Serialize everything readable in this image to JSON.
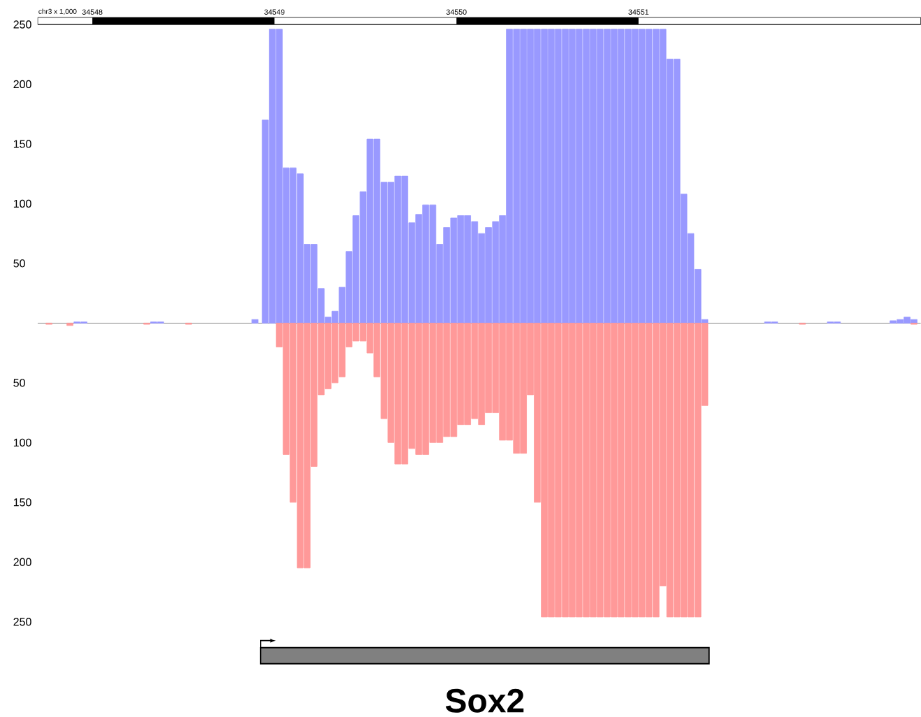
{
  "chart_data": {
    "type": "bar",
    "xlabel": "chr3 x 1,000",
    "xlim": [
      34547.7,
      34552.55
    ],
    "xticks": [
      34548,
      34549,
      34550,
      34551
    ],
    "ylim": [
      -250,
      250
    ],
    "yticks": [
      {
        "value": -250,
        "label": "250"
      },
      {
        "value": -200,
        "label": "200"
      },
      {
        "value": -150,
        "label": "150"
      },
      {
        "value": -100,
        "label": "100"
      },
      {
        "value": -50,
        "label": "50"
      },
      50,
      100,
      150,
      200,
      250
    ],
    "series": [
      {
        "color": "#9999ff",
        "x": [
          34547.916,
          34547.954,
          34548.337,
          34548.375,
          34548.893,
          34548.95,
          34548.989,
          34549.027,
          34549.065,
          34549.103,
          34549.142,
          34549.18,
          34549.218,
          34549.257,
          34549.295,
          34549.333,
          34549.372,
          34549.41,
          34549.448,
          34549.487,
          34549.525,
          34549.563,
          34549.602,
          34549.64,
          34549.678,
          34549.716,
          34549.755,
          34549.793,
          34549.831,
          34549.87,
          34549.908,
          34549.946,
          34549.985,
          34550.023,
          34550.061,
          34550.1,
          34550.138,
          34550.176,
          34550.215,
          34550.253,
          34550.291,
          34550.33,
          34550.368,
          34550.406,
          34550.444,
          34550.483,
          34550.521,
          34550.559,
          34550.598,
          34550.636,
          34550.674,
          34550.713,
          34550.751,
          34550.789,
          34550.828,
          34550.866,
          34550.904,
          34550.943,
          34550.981,
          34551.019,
          34551.057,
          34551.096,
          34551.134,
          34551.172,
          34551.211,
          34551.249,
          34551.287,
          34551.326,
          34551.364,
          34551.709,
          34551.747,
          34552.054,
          34552.092,
          34552.398,
          34552.437,
          34552.475,
          34552.513
        ],
        "values": [
          1,
          1,
          1,
          1,
          3,
          170,
          246,
          246,
          130,
          130,
          125,
          66,
          66,
          29,
          5,
          10,
          30,
          60,
          90,
          110,
          154,
          154,
          118,
          118,
          123,
          123,
          84,
          91,
          99,
          99,
          66,
          80,
          88,
          90,
          90,
          85,
          75,
          80,
          85,
          90,
          246,
          246,
          246,
          246,
          246,
          246,
          246,
          246,
          246,
          246,
          246,
          246,
          246,
          246,
          246,
          246,
          246,
          246,
          246,
          246,
          246,
          246,
          246,
          221,
          221,
          108,
          75,
          45,
          3,
          1,
          1,
          1,
          1,
          2,
          3,
          5,
          3
        ]
      },
      {
        "color": "#ff9999",
        "x": [
          34547.762,
          34547.877,
          34548.299,
          34548.529,
          34549.027,
          34549.065,
          34549.103,
          34549.142,
          34549.18,
          34549.218,
          34549.257,
          34549.295,
          34549.333,
          34549.372,
          34549.41,
          34549.448,
          34549.487,
          34549.525,
          34549.563,
          34549.602,
          34549.64,
          34549.678,
          34549.716,
          34549.755,
          34549.793,
          34549.831,
          34549.87,
          34549.908,
          34549.946,
          34549.985,
          34550.023,
          34550.061,
          34550.1,
          34550.138,
          34550.176,
          34550.215,
          34550.253,
          34550.291,
          34550.33,
          34550.368,
          34550.406,
          34550.444,
          34550.483,
          34550.521,
          34550.559,
          34550.598,
          34550.636,
          34550.674,
          34550.713,
          34550.751,
          34550.789,
          34550.828,
          34550.866,
          34550.904,
          34550.943,
          34550.981,
          34551.019,
          34551.057,
          34551.096,
          34551.134,
          34551.172,
          34551.211,
          34551.249,
          34551.287,
          34551.326,
          34551.364,
          34551.9,
          34552.513
        ],
        "values": [
          -1,
          -2,
          -1,
          -1,
          -20,
          -110,
          -150,
          -205,
          -205,
          -120,
          -60,
          -55,
          -50,
          -45,
          -20,
          -15,
          -15,
          -25,
          -45,
          -80,
          -100,
          -118,
          -118,
          -105,
          -110,
          -110,
          -100,
          -100,
          -95,
          -95,
          -85,
          -85,
          -80,
          -85,
          -75,
          -75,
          -98,
          -98,
          -109,
          -109,
          -60,
          -150,
          -246,
          -246,
          -246,
          -246,
          -246,
          -246,
          -246,
          -246,
          -246,
          -246,
          -246,
          -246,
          -246,
          -246,
          -246,
          -246,
          -246,
          -220,
          -246,
          -246,
          -246,
          -246,
          -246,
          -69,
          -1,
          -1
        ]
      }
    ],
    "annotations": [
      "Sox2"
    ]
  }
}
